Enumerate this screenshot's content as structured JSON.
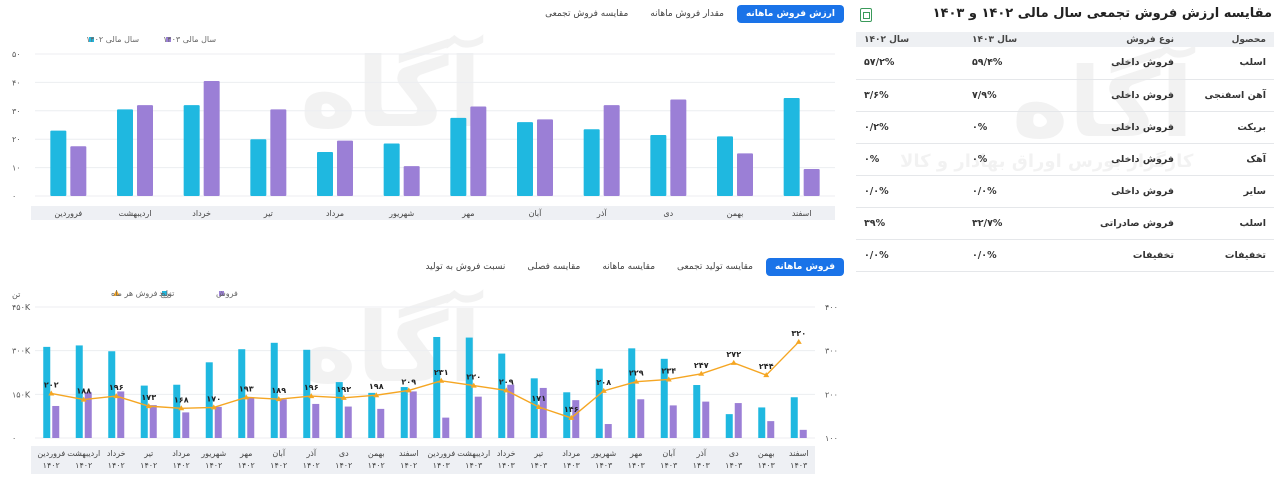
{
  "table_section": {
    "title": "مقایسه ارزش فروش تجمعی سال مالی ۱۴۰۲ و ۱۴۰۳",
    "export_icon": "excel-export-icon",
    "headers": [
      "محصول",
      "نوع فروش",
      "سال ۱۴۰۳",
      "سال ۱۴۰۲"
    ],
    "rows": [
      [
        "اسلب",
        "فروش داخلی",
        "۵۹/۴%",
        "۵۷/۲%"
      ],
      [
        "آهن اسفنجی",
        "فروش داخلی",
        "۷/۹%",
        "۳/۶%"
      ],
      [
        "بریکت",
        "فروش داخلی",
        "۰%",
        "۰/۲%"
      ],
      [
        "آهک",
        "فروش داخلی",
        "۰%",
        "۰%"
      ],
      [
        "سایر",
        "فروش داخلی",
        "۰/۰%",
        "۰/۰%"
      ],
      [
        "اسلب",
        "فروش صادراتی",
        "۳۲/۷%",
        "۳۹%"
      ],
      [
        "تخفیفات",
        "تخفیفات",
        "۰/۰%",
        "۰/۰%"
      ]
    ]
  },
  "top_tabs": [
    "ارزش فروش ماهانه",
    "مقدار فروش ماهانه",
    "مقایسه فروش تجمعی"
  ],
  "top_tabs_active": 0,
  "bottom_tabs": [
    "فروش ماهانه",
    "مقایسه تولید تجمعی",
    "مقایسه ماهانه",
    "مقایسه فصلی",
    "نسبت فروش به تولید"
  ],
  "bottom_tabs_active": 0,
  "watermark": {
    "logo": "آگاه",
    "subtitle": "کارگزار بورس اوراق بهادار و کالا"
  },
  "colors": {
    "teal": "#1fb8e0",
    "purple": "#9b7fd6",
    "orange": "#f5a623",
    "active_tab": "#1a73e8"
  },
  "chart_data": [
    {
      "type": "bar",
      "legend": [
        "سال مالی ۱۴۰۲",
        "سال مالی ۱۴۰۳"
      ],
      "legend_position": "top-left",
      "categories": [
        "فروردین",
        "اردیبهشت",
        "خرداد",
        "تیر",
        "مرداد",
        "شهریور",
        "مهر",
        "آبان",
        "آذر",
        "دی",
        "بهمن",
        "اسفند"
      ],
      "yticks": [
        "۰",
        "۱۰",
        "۲۰",
        "۳۰",
        "۴۰",
        "۵۰"
      ],
      "ylim": [
        0,
        50
      ],
      "series": [
        {
          "name": "سال مالی ۱۴۰۲",
          "color": "#1fb8e0",
          "values": [
            23,
            30.5,
            32,
            20,
            15.5,
            18.5,
            27.5,
            26,
            23.5,
            21.5,
            21,
            34.5
          ]
        },
        {
          "name": "سال مالی ۱۴۰۳",
          "color": "#9b7fd6",
          "values": [
            17.5,
            32,
            40.5,
            30.5,
            19.5,
            10.5,
            31.5,
            27,
            32,
            34,
            15,
            9.5
          ]
        }
      ],
      "grid": true
    },
    {
      "type": "bar",
      "legend": [
        "فروش",
        "تولید",
        "نرخ فروش هر ماه"
      ],
      "legend_position": "top-left",
      "left_unit": "تن",
      "categories": [
        [
          "فروردین",
          "۱۴۰۲"
        ],
        [
          "اردیبهشت",
          "۱۴۰۲"
        ],
        [
          "خرداد",
          "۱۴۰۲"
        ],
        [
          "تیر",
          "۱۴۰۲"
        ],
        [
          "مرداد",
          "۱۴۰۲"
        ],
        [
          "شهریور",
          "۱۴۰۲"
        ],
        [
          "مهر",
          "۱۴۰۲"
        ],
        [
          "آبان",
          "۱۴۰۲"
        ],
        [
          "آذر",
          "۱۴۰۲"
        ],
        [
          "دی",
          "۱۴۰۲"
        ],
        [
          "بهمن",
          "۱۴۰۲"
        ],
        [
          "اسفند",
          "۱۴۰۲"
        ],
        [
          "فروردین",
          "۱۴۰۳"
        ],
        [
          "اردیبهشت",
          "۱۴۰۳"
        ],
        [
          "خرداد",
          "۱۴۰۳"
        ],
        [
          "تیر",
          "۱۴۰۳"
        ],
        [
          "مرداد",
          "۱۴۰۳"
        ],
        [
          "شهریور",
          "۱۴۰۳"
        ],
        [
          "مهر",
          "۱۴۰۳"
        ],
        [
          "آبان",
          "۱۴۰۳"
        ],
        [
          "آذر",
          "۱۴۰۳"
        ],
        [
          "دی",
          "۱۴۰۳"
        ],
        [
          "بهمن",
          "۱۴۰۳"
        ],
        [
          "اسفند",
          "۱۴۰۳"
        ]
      ],
      "left_yticks": [
        "۰",
        "۱۵۰K",
        "۳۰۰K",
        "۴۵۰K"
      ],
      "left_ylim": [
        0,
        450000
      ],
      "right_yticks": [
        "۱۰۰",
        "۲۰۰",
        "۳۰۰",
        "۴۰۰"
      ],
      "right_ylim": [
        100,
        400
      ],
      "series": [
        {
          "name": "تولید",
          "color": "#1fb8e0",
          "axis": "left",
          "values": [
            313000,
            318000,
            298000,
            180000,
            183000,
            260000,
            305000,
            327000,
            303000,
            192000,
            155000,
            175000,
            347000,
            345000,
            290000,
            205000,
            157000,
            238000,
            308000,
            272000,
            182000,
            82000,
            105000,
            140000
          ]
        },
        {
          "name": "فروش",
          "color": "#9b7fd6",
          "axis": "left",
          "values": [
            110000,
            157000,
            160000,
            113000,
            88000,
            107000,
            138000,
            133000,
            117000,
            108000,
            100000,
            160000,
            70000,
            142000,
            183000,
            172000,
            130000,
            48000,
            133000,
            112000,
            125000,
            120000,
            58000,
            28000
          ]
        },
        {
          "name": "نرخ فروش هر ماه",
          "color": "#f5a623",
          "axis": "right",
          "type": "line",
          "values": [
            202,
            188,
            196,
            173,
            168,
            170,
            193,
            189,
            196,
            192,
            198,
            209,
            231,
            220,
            209,
            171,
            146,
            208,
            229,
            234,
            247,
            272,
            244,
            320
          ],
          "labels": [
            "۲۰۲",
            "۱۸۸",
            "۱۹۶",
            "۱۷۳",
            "۱۶۸",
            "۱۷۰",
            "۱۹۳",
            "۱۸۹",
            "۱۹۶",
            "۱۹۲",
            "۱۹۸",
            "۲۰۹",
            "۲۳۱",
            "۲۲۰",
            "۲۰۹",
            "۱۷۱",
            "۱۴۶",
            "۲۰۸",
            "۲۲۹",
            "۲۳۴",
            "۲۴۷",
            "۲۷۲",
            "۲۴۴",
            "۳۲۰"
          ]
        }
      ],
      "grid": true
    }
  ]
}
